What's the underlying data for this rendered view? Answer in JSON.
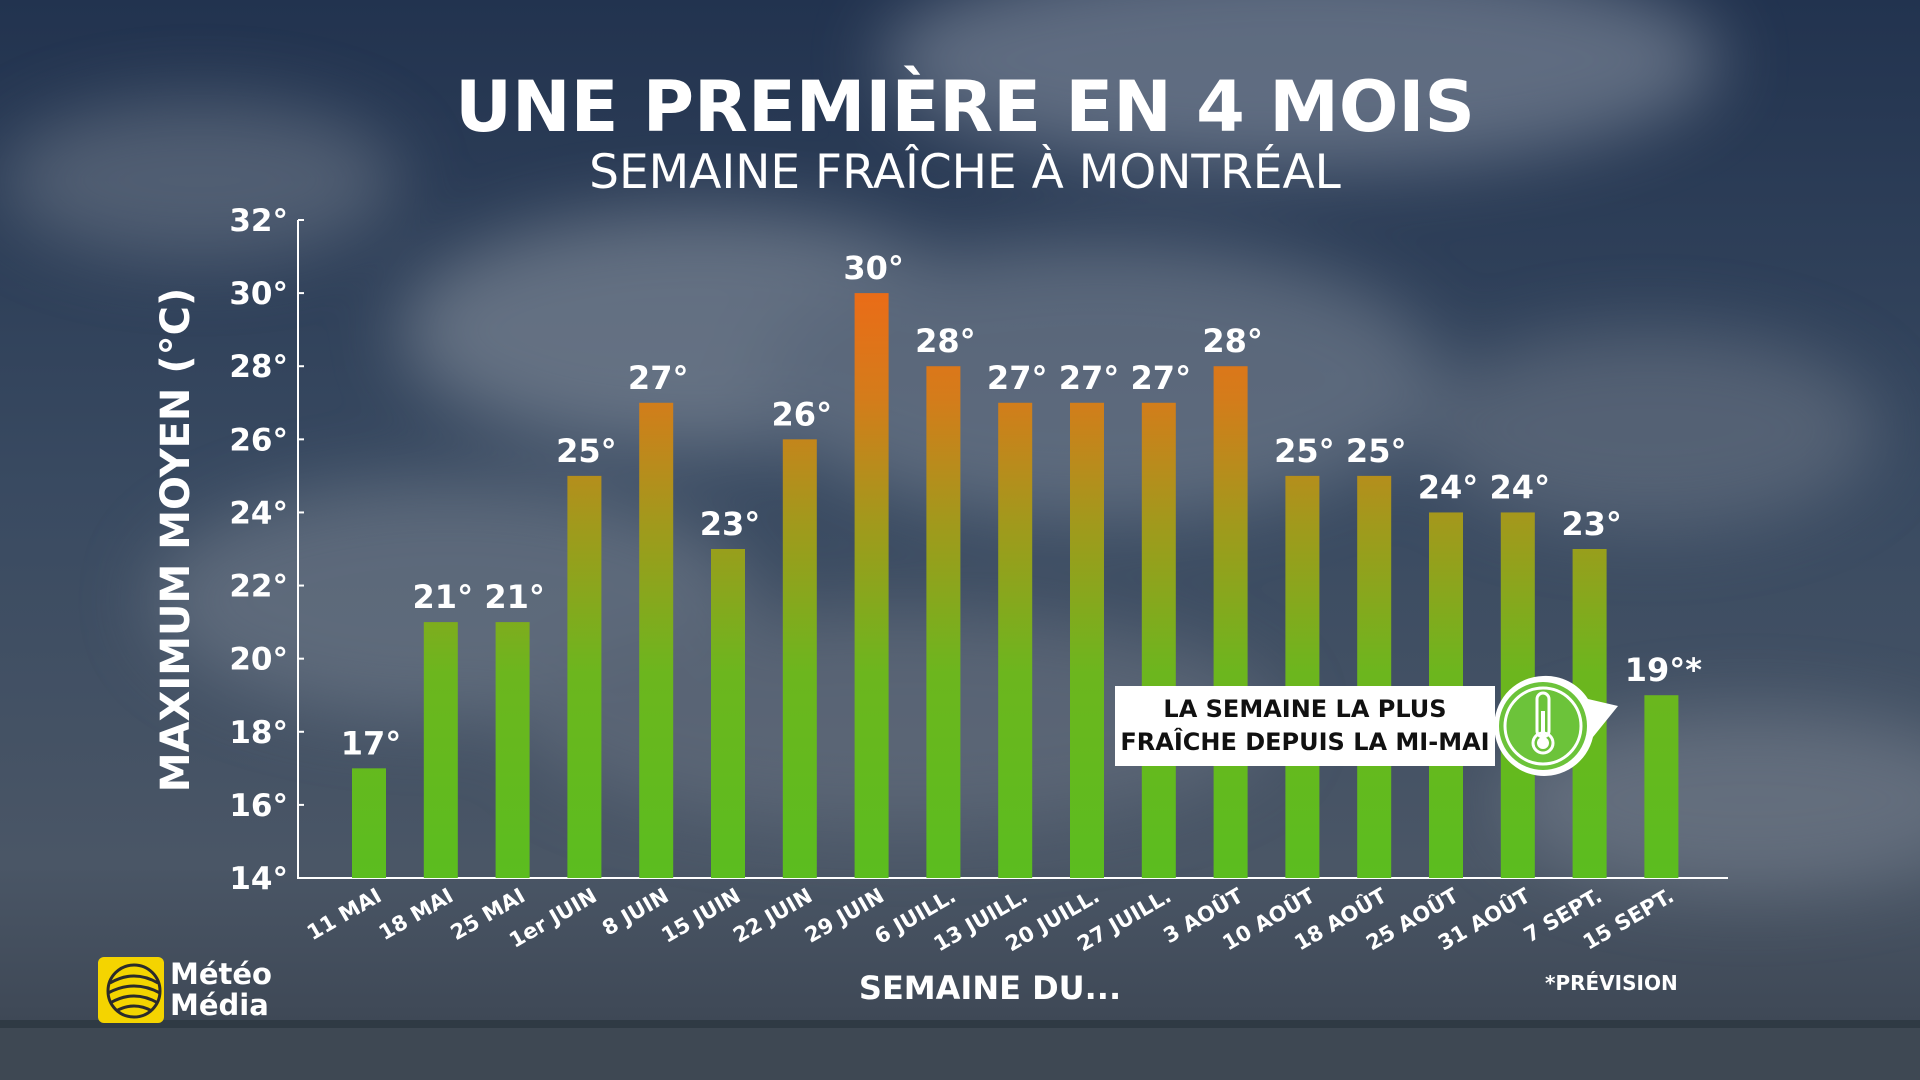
{
  "header": {
    "title": "UNE PREMIÈRE EN 4 MOIS",
    "subtitle": "SEMAINE FRAÎCHE À MONTRÉAL"
  },
  "callout": {
    "line1": "LA SEMAINE LA PLUS",
    "line2": "FRAÎCHE DEPUIS LA MI-MAI",
    "icon": "thermometer-icon"
  },
  "logo": {
    "line1": "Météo",
    "line2": "Média",
    "icon": "meteomedia-globe-icon"
  },
  "footnote": "*PRÉVISION",
  "colors": {
    "bar_low": "#5bbd1f",
    "bar_mid": "#8aa81c",
    "bar_high": "#e8711a",
    "logo": "#f4d400",
    "callout_icon": "#6cc33a"
  },
  "chart_data": {
    "type": "bar",
    "title": "UNE PREMIÈRE EN 4 MOIS",
    "subtitle": "SEMAINE FRAÎCHE À MONTRÉAL",
    "xlabel": "SEMAINE DU...",
    "ylabel": "MAXIMUM MOYEN (°C)",
    "ylim": [
      14,
      32
    ],
    "yticks": [
      "14°",
      "16°",
      "18°",
      "20°",
      "22°",
      "24°",
      "26°",
      "28°",
      "30°",
      "32°"
    ],
    "categories": [
      "11 MAI",
      "18 MAI",
      "25 MAI",
      "1er JUIN",
      "8 JUIN",
      "15 JUIN",
      "22 JUIN",
      "29 JUIN",
      "6 JUILL.",
      "13 JUILL.",
      "20 JUILL.",
      "27 JUILL.",
      "3 AOÛT",
      "10 AOÛT",
      "18 AOÛT",
      "25 AOÛT",
      "31 AOÛT",
      "7 SEPT.",
      "15 SEPT."
    ],
    "values": [
      17,
      21,
      21,
      25,
      27,
      23,
      26,
      30,
      28,
      27,
      27,
      27,
      28,
      25,
      25,
      24,
      24,
      23,
      19
    ],
    "value_labels": [
      "17°",
      "21°",
      "21°",
      "25°",
      "27°",
      "23°",
      "26°",
      "30°",
      "28°",
      "27°",
      "27°",
      "27°",
      "28°",
      "25°",
      "25°",
      "24°",
      "24°",
      "23°",
      "19°*"
    ],
    "grid": false
  }
}
